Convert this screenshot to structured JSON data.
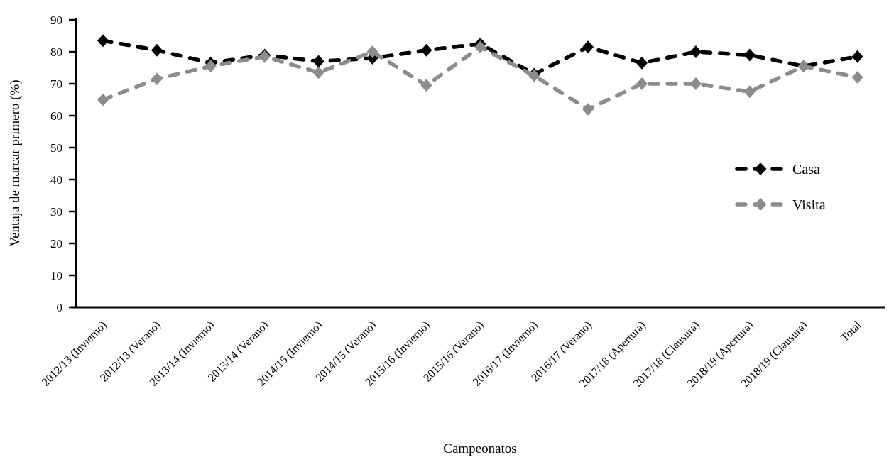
{
  "chart_data": {
    "type": "line",
    "title": "",
    "xlabel": "Campeonatos",
    "ylabel": "Ventaja de marcar primero (%)",
    "ylim": [
      0,
      90
    ],
    "ytick_step": 10,
    "grid": false,
    "legend_position": "right-middle",
    "line_style": "dashed",
    "marker": "diamond",
    "categories": [
      "2012/13 (Invierno)",
      "2012/13 (Verano)",
      "2013/14 (Invierno)",
      "2013/14 (Verano)",
      "2014/15 (Invierno)",
      "2014/15 (Verano)",
      "2015/16 (Invierno)",
      "2015/16 (Verano)",
      "2016/17 (Invierno)",
      "2016/17 (Verano)",
      "2017/18 (Apertura)",
      "2017/18 (Clausura)",
      "2018/19 (Apertura)",
      "2018/19 (Clausura)",
      "Total"
    ],
    "series": [
      {
        "name": "Casa",
        "color": "#000000",
        "values": [
          83.5,
          80.5,
          76.5,
          79,
          77,
          78,
          80.5,
          82.5,
          73,
          81.5,
          76.5,
          80,
          79,
          75.5,
          78.5
        ]
      },
      {
        "name": "Visita",
        "color": "#8c8c8c",
        "values": [
          65,
          71.5,
          75.5,
          78.5,
          73.5,
          80,
          69.5,
          81.5,
          72.5,
          62,
          70,
          70,
          67.5,
          75.5,
          72
        ]
      }
    ]
  }
}
